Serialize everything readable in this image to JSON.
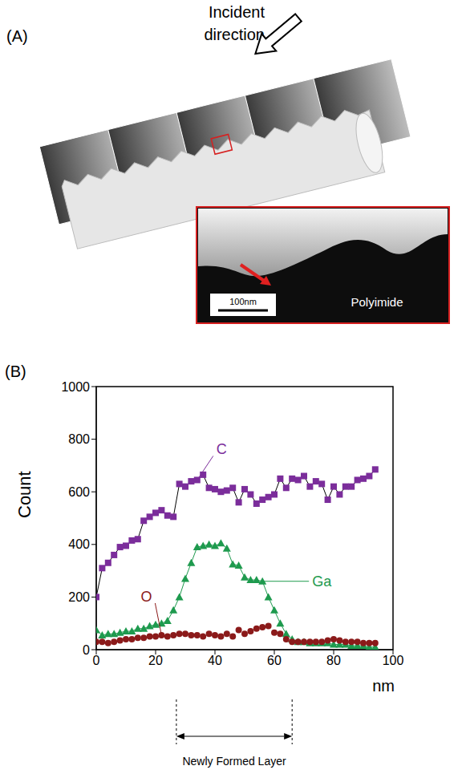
{
  "panel_a": {
    "label": "(A)",
    "arrow_label": "Incident direction",
    "scale_bar": "100nm",
    "material": "Polyimide"
  },
  "panel_b": {
    "label": "(B)"
  },
  "chart_data": {
    "type": "line",
    "x_label": "nm",
    "y_label": "Count",
    "x": [
      0,
      2,
      4,
      6,
      8,
      10,
      12,
      14,
      16,
      18,
      20,
      22,
      24,
      26,
      28,
      30,
      32,
      34,
      36,
      38,
      40,
      42,
      44,
      46,
      48,
      50,
      52,
      54,
      56,
      58,
      60,
      62,
      64,
      66,
      68,
      70,
      72,
      74,
      76,
      78,
      80,
      82,
      84,
      86,
      88,
      90,
      92,
      94
    ],
    "series": [
      {
        "name": "C",
        "color": "#7b2d9b",
        "marker": "square",
        "line_style": "solid",
        "values": [
          200,
          310,
          330,
          360,
          390,
          395,
          415,
          420,
          490,
          505,
          520,
          530,
          510,
          505,
          630,
          620,
          640,
          645,
          665,
          615,
          610,
          600,
          605,
          615,
          560,
          610,
          590,
          555,
          570,
          580,
          590,
          650,
          615,
          650,
          645,
          660,
          620,
          640,
          630,
          570,
          620,
          590,
          620,
          620,
          645,
          650,
          660,
          685
        ]
      },
      {
        "name": "Ga",
        "color": "#1e9a4e",
        "marker": "triangle",
        "line_style": "solid",
        "values": [
          75,
          55,
          60,
          60,
          65,
          70,
          70,
          80,
          80,
          90,
          95,
          100,
          110,
          150,
          200,
          270,
          330,
          390,
          395,
          400,
          395,
          405,
          385,
          325,
          320,
          275,
          265,
          265,
          260,
          200,
          150,
          100,
          60,
          40,
          30,
          30,
          25,
          25,
          25,
          25,
          20,
          20,
          20,
          15,
          15,
          15,
          10,
          10
        ]
      },
      {
        "name": "O",
        "color": "#8b1a1a",
        "marker": "circle",
        "line_style": "none",
        "values": [
          30,
          30,
          25,
          30,
          35,
          40,
          40,
          45,
          45,
          50,
          50,
          55,
          50,
          55,
          60,
          60,
          55,
          55,
          50,
          60,
          55,
          50,
          60,
          50,
          75,
          60,
          70,
          80,
          85,
          90,
          65,
          60,
          40,
          30,
          30,
          30,
          30,
          30,
          30,
          35,
          40,
          35,
          30,
          30,
          30,
          25,
          25,
          25
        ]
      }
    ],
    "xlim": [
      0,
      100
    ],
    "xticks": [
      0,
      20,
      40,
      60,
      80,
      100
    ],
    "ylim": [
      0,
      1000
    ],
    "yticks": [
      0,
      200,
      400,
      600,
      800,
      1000
    ],
    "grid": false,
    "annotations": [
      {
        "text": "Newly Formed Layer",
        "x": [
          27,
          66
        ]
      }
    ]
  }
}
